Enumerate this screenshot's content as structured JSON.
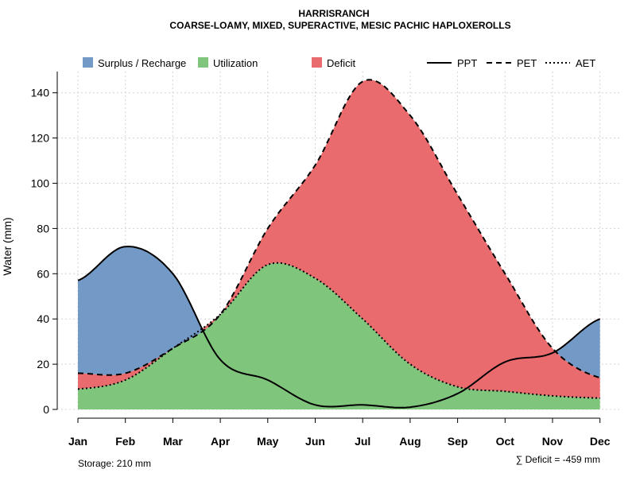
{
  "chart_data": {
    "type": "area",
    "title": "HARRISRANCH",
    "subtitle": "COARSE-LOAMY, MIXED, SUPERACTIVE, MESIC PACHIC HAPLOXEROLLS",
    "ylabel": "Water (mm)",
    "xlabel": "",
    "ylim": [
      0,
      150
    ],
    "yticks": [
      0,
      20,
      40,
      60,
      80,
      100,
      120,
      140
    ],
    "grid": true,
    "categories": [
      "Jan",
      "Feb",
      "Mar",
      "Apr",
      "May",
      "Jun",
      "Jul",
      "Aug",
      "Sep",
      "Oct",
      "Nov",
      "Dec"
    ],
    "series": [
      {
        "name": "PPT",
        "style": "solid",
        "values": [
          57,
          72,
          60,
          22,
          13,
          2,
          2,
          1,
          7,
          21,
          25,
          40
        ]
      },
      {
        "name": "PET",
        "style": "dashed",
        "values": [
          16,
          16,
          27,
          42,
          80,
          108,
          145,
          130,
          95,
          60,
          27,
          14
        ]
      },
      {
        "name": "AET",
        "style": "dotted",
        "values": [
          9,
          13,
          27,
          42,
          64,
          58,
          40,
          20,
          10,
          8,
          6,
          5
        ]
      }
    ],
    "legend": [
      {
        "label": "Surplus / Recharge",
        "kind": "fill",
        "color": "#7399c6"
      },
      {
        "label": "Utilization",
        "kind": "fill",
        "color": "#7fc57b"
      },
      {
        "label": "Deficit",
        "kind": "fill",
        "color": "#e96b6e"
      },
      {
        "label": "PPT",
        "kind": "line",
        "dash": "solid"
      },
      {
        "label": "PET",
        "kind": "line",
        "dash": "dashed"
      },
      {
        "label": "AET",
        "kind": "line",
        "dash": "dotted"
      }
    ],
    "legend_position": "top",
    "annotations": {
      "storage": "Storage: 210 mm",
      "deficit": "∑ Deficit = -459 mm"
    }
  }
}
